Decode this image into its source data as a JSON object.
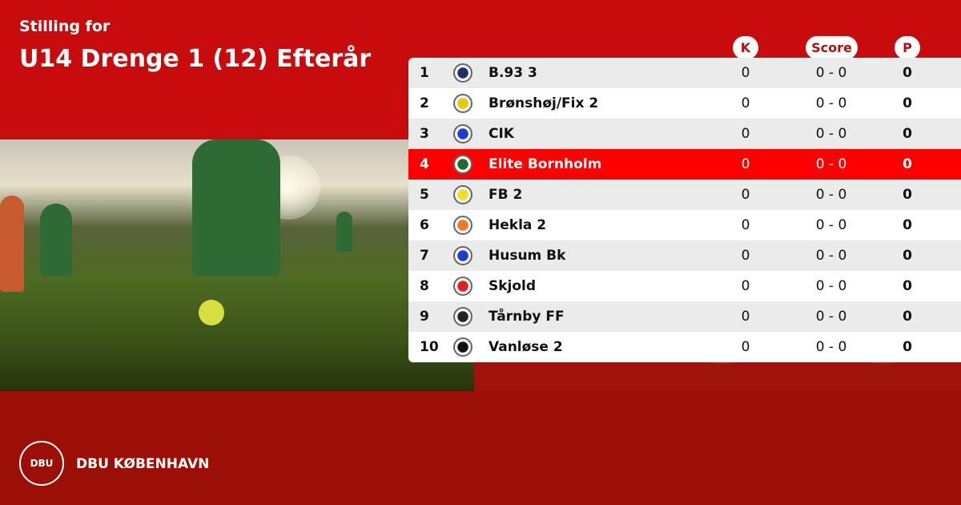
{
  "header": {
    "subtitle": "Stilling for",
    "title": "U14 Drenge 1 (12) Efterår"
  },
  "columns": {
    "k": "K",
    "score": "Score",
    "p": "P"
  },
  "rows": [
    {
      "pos": "1",
      "team": "B.93 3",
      "k": "0",
      "score": "0 - 0",
      "p": "0",
      "logo": "#1a2f6b"
    },
    {
      "pos": "2",
      "team": "Brønshøj/Fix 2",
      "k": "0",
      "score": "0 - 0",
      "p": "0",
      "logo": "#e8c800"
    },
    {
      "pos": "3",
      "team": "CIK",
      "k": "0",
      "score": "0 - 0",
      "p": "0",
      "logo": "#1a3ccf"
    },
    {
      "pos": "4",
      "team": "Elite Bornholm",
      "k": "0",
      "score": "0 - 0",
      "p": "0",
      "logo": "#1f6b35",
      "highlighted": true
    },
    {
      "pos": "5",
      "team": "FB 2",
      "k": "0",
      "score": "0 - 0",
      "p": "0",
      "logo": "#f0e020"
    },
    {
      "pos": "6",
      "team": "Hekla 2",
      "k": "0",
      "score": "0 - 0",
      "p": "0",
      "logo": "#f07820"
    },
    {
      "pos": "7",
      "team": "Husum Bk",
      "k": "0",
      "score": "0 - 0",
      "p": "0",
      "logo": "#1a3ccf"
    },
    {
      "pos": "8",
      "team": "Skjold",
      "k": "0",
      "score": "0 - 0",
      "p": "0",
      "logo": "#e02020"
    },
    {
      "pos": "9",
      "team": "Tårnby FF",
      "k": "0",
      "score": "0 - 0",
      "p": "0",
      "logo": "#222222"
    },
    {
      "pos": "10",
      "team": "Vanløse 2",
      "k": "0",
      "score": "0 - 0",
      "p": "0",
      "logo": "#111111"
    }
  ],
  "footer": {
    "brand": "DBU KØBENHAVN",
    "logo_text": "DBU"
  },
  "colors": {
    "header_red": "#c80c0e",
    "footer_red": "#9c0f07",
    "highlight": "#ff0000"
  }
}
